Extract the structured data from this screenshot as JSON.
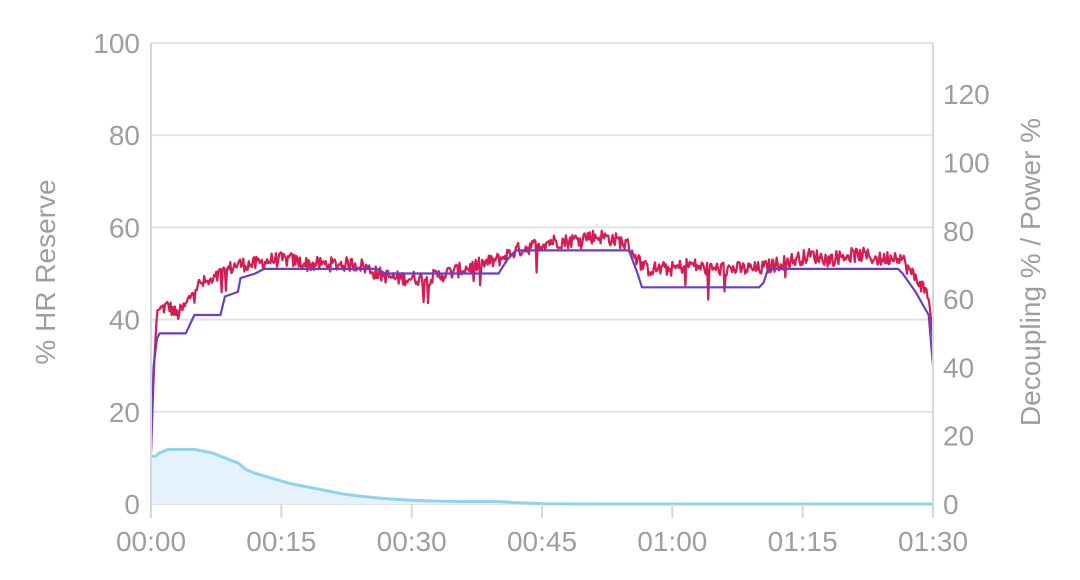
{
  "chart_data": {
    "type": "line",
    "title": "",
    "left_axis": {
      "label": "% HR Reserve",
      "ylim": [
        0,
        100
      ],
      "ticks": [
        "0",
        "20",
        "40",
        "60",
        "80",
        "100"
      ],
      "tick_values": [
        0,
        20,
        40,
        60,
        80,
        100
      ]
    },
    "right_axis": {
      "label": "Decoupling % / Power %",
      "ylim": [
        0,
        135
      ],
      "ticks": [
        "0",
        "20",
        "40",
        "60",
        "80",
        "100",
        "120"
      ],
      "tick_values": [
        0,
        20,
        40,
        60,
        80,
        100,
        120
      ]
    },
    "x_axis": {
      "unit": "minutes",
      "xlim": [
        0,
        90
      ],
      "ticks": [
        "00:00",
        "00:15",
        "00:30",
        "00:45",
        "01:00",
        "01:15",
        "01:30"
      ],
      "tick_values": [
        0,
        15,
        30,
        45,
        60,
        75,
        90
      ]
    },
    "grid": true,
    "series": [
      {
        "axis": "left",
        "color": "#d81b50",
        "style": "noisy-line",
        "points": [
          [
            0,
            11
          ],
          [
            0.3,
            28
          ],
          [
            0.7,
            42
          ],
          [
            2,
            43
          ],
          [
            3,
            41
          ],
          [
            4,
            43
          ],
          [
            5,
            47
          ],
          [
            6,
            48
          ],
          [
            7,
            48
          ],
          [
            8,
            50
          ],
          [
            9,
            51
          ],
          [
            10,
            52
          ],
          [
            12,
            52
          ],
          [
            14,
            53
          ],
          [
            16,
            53
          ],
          [
            18,
            52
          ],
          [
            20,
            52
          ],
          [
            22,
            52
          ],
          [
            24,
            52
          ],
          [
            25,
            51
          ],
          [
            26,
            50
          ],
          [
            28,
            49
          ],
          [
            30,
            49
          ],
          [
            32,
            49
          ],
          [
            34,
            50
          ],
          [
            36,
            51
          ],
          [
            38,
            52
          ],
          [
            40,
            53
          ],
          [
            42,
            55
          ],
          [
            44,
            56
          ],
          [
            46,
            57
          ],
          [
            48,
            57
          ],
          [
            50,
            58
          ],
          [
            52,
            58
          ],
          [
            54,
            57
          ],
          [
            55,
            56
          ],
          [
            56,
            53
          ],
          [
            57,
            51
          ],
          [
            58,
            51
          ],
          [
            60,
            51
          ],
          [
            62,
            52
          ],
          [
            64,
            51
          ],
          [
            66,
            51
          ],
          [
            68,
            51
          ],
          [
            70,
            51
          ],
          [
            72,
            52
          ],
          [
            74,
            53
          ],
          [
            76,
            54
          ],
          [
            78,
            53
          ],
          [
            80,
            54
          ],
          [
            82,
            54
          ],
          [
            84,
            53
          ],
          [
            86,
            54
          ],
          [
            86.5,
            53
          ],
          [
            87.5,
            50
          ],
          [
            88.5,
            48
          ],
          [
            89.5,
            45
          ],
          [
            90,
            36
          ]
        ]
      },
      {
        "axis": "left",
        "color": "#6a3fc6",
        "style": "line",
        "points": [
          [
            0,
            12
          ],
          [
            0.3,
            30
          ],
          [
            0.7,
            36
          ],
          [
            1,
            37
          ],
          [
            4,
            37
          ],
          [
            4.5,
            39
          ],
          [
            5,
            41
          ],
          [
            8,
            41
          ],
          [
            8.5,
            45
          ],
          [
            10,
            46
          ],
          [
            10.3,
            49
          ],
          [
            12,
            50
          ],
          [
            13,
            51
          ],
          [
            20,
            51
          ],
          [
            26,
            51
          ],
          [
            27,
            50
          ],
          [
            37,
            50
          ],
          [
            38,
            50
          ],
          [
            40,
            50
          ],
          [
            41,
            53
          ],
          [
            42,
            55
          ],
          [
            55,
            55
          ],
          [
            56,
            50
          ],
          [
            56.5,
            47
          ],
          [
            60,
            47
          ],
          [
            70,
            47
          ],
          [
            70.5,
            48
          ],
          [
            71,
            51
          ],
          [
            80,
            51
          ],
          [
            86,
            51
          ],
          [
            86.5,
            50
          ],
          [
            88,
            46
          ],
          [
            89.5,
            41
          ],
          [
            90,
            30
          ]
        ]
      },
      {
        "axis": "right",
        "color": "#8fd4ea",
        "fill": "#e4f3fb",
        "style": "area",
        "points": [
          [
            0,
            14
          ],
          [
            0.5,
            14
          ],
          [
            1,
            15
          ],
          [
            2,
            16
          ],
          [
            3,
            16
          ],
          [
            4,
            16
          ],
          [
            5,
            16
          ],
          [
            6,
            15.5
          ],
          [
            7,
            15
          ],
          [
            8,
            14
          ],
          [
            9,
            13
          ],
          [
            10,
            12
          ],
          [
            11,
            10
          ],
          [
            12,
            9
          ],
          [
            14,
            7.5
          ],
          [
            16,
            6
          ],
          [
            18,
            5
          ],
          [
            20,
            4
          ],
          [
            22,
            3
          ],
          [
            24,
            2.3
          ],
          [
            26,
            1.8
          ],
          [
            28,
            1.4
          ],
          [
            30,
            1.1
          ],
          [
            32,
            0.9
          ],
          [
            34,
            0.8
          ],
          [
            36,
            0.7
          ],
          [
            38,
            0.7
          ],
          [
            40,
            0.7
          ],
          [
            42,
            0.4
          ],
          [
            44,
            0.2
          ],
          [
            45,
            0.1
          ],
          [
            50,
            0
          ],
          [
            90,
            0
          ]
        ]
      }
    ]
  }
}
